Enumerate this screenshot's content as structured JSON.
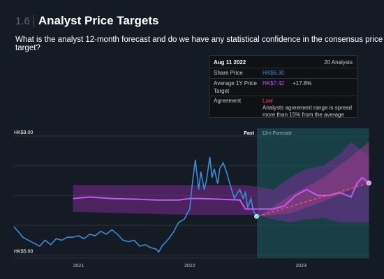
{
  "header": {
    "number": "1.6",
    "title": "Analyst Price Targets"
  },
  "question": "What is the analyst 12-month forecast and do we have any statistical confidence in the consensus price target?",
  "tooltip": {
    "date": "Aug 11 2022",
    "analysts": "20 Analysts",
    "share_price_label": "Share Price",
    "share_price_value": "HK$6.30",
    "avg_label_1": "Average 1Y Price",
    "avg_label_2": "Target",
    "avg_value": "HK$7.42",
    "avg_change": "+17.8%",
    "agreement_label": "Agreement",
    "agreement_value": "Low",
    "agreement_note_1": "Analysts agreement range is spread",
    "agreement_note_2": "more than 15% from the average"
  },
  "colors": {
    "share_price": "#3b8ed8",
    "avg_target": "#c25cf0",
    "range_band": "#8b2fa8",
    "forecast_bg": "#1d5c63",
    "trend": "#e85a4f",
    "low": "#ff4b4b",
    "share_text": "#3b8ed8",
    "avg_text": "#c25cf0"
  },
  "chart_data": {
    "type": "line",
    "labels": {
      "past": "Past",
      "forecast": "12m Forecast"
    },
    "y_ticks": [
      {
        "v": 9.0,
        "label": "HK$9.00"
      },
      {
        "v": 5.0,
        "label": "HK$5.00"
      }
    ],
    "x_ticks": [
      {
        "t": 2021.0,
        "label": "2021"
      },
      {
        "t": 2022.0,
        "label": "2022"
      },
      {
        "t": 2023.0,
        "label": "2023"
      }
    ],
    "x_range": [
      2020.42,
      2023.62
    ],
    "y_range": [
      4.9,
      9.35
    ],
    "now": 2022.61,
    "forecast_end": 2023.61,
    "series": [
      {
        "points": [
          [
            2020.42,
            5.95
          ],
          [
            2020.46,
            5.78
          ],
          [
            2020.5,
            5.6
          ],
          [
            2020.55,
            5.5
          ],
          [
            2020.6,
            5.4
          ],
          [
            2020.65,
            5.3
          ],
          [
            2020.7,
            5.5
          ],
          [
            2020.75,
            5.35
          ],
          [
            2020.8,
            5.55
          ],
          [
            2020.85,
            5.5
          ],
          [
            2020.9,
            5.6
          ],
          [
            2020.95,
            5.6
          ],
          [
            2021.0,
            5.65
          ],
          [
            2021.05,
            5.55
          ],
          [
            2021.1,
            5.7
          ],
          [
            2021.15,
            5.65
          ],
          [
            2021.2,
            5.8
          ],
          [
            2021.25,
            5.7
          ],
          [
            2021.3,
            5.85
          ],
          [
            2021.35,
            5.7
          ],
          [
            2021.4,
            5.5
          ],
          [
            2021.45,
            5.45
          ],
          [
            2021.5,
            5.5
          ],
          [
            2021.55,
            5.3
          ],
          [
            2021.6,
            5.35
          ],
          [
            2021.65,
            5.25
          ],
          [
            2021.7,
            5.2
          ],
          [
            2021.72,
            5.1
          ],
          [
            2021.75,
            5.3
          ],
          [
            2021.8,
            5.5
          ],
          [
            2021.85,
            5.75
          ],
          [
            2021.9,
            6.1
          ],
          [
            2021.95,
            6.2
          ],
          [
            2022.0,
            6.55
          ],
          [
            2022.02,
            7.3
          ],
          [
            2022.05,
            8.2
          ],
          [
            2022.08,
            7.2
          ],
          [
            2022.1,
            7.8
          ],
          [
            2022.13,
            7.2
          ],
          [
            2022.15,
            7.5
          ],
          [
            2022.18,
            8.3
          ],
          [
            2022.2,
            7.6
          ],
          [
            2022.22,
            7.9
          ],
          [
            2022.25,
            7.4
          ],
          [
            2022.27,
            7.9
          ],
          [
            2022.3,
            8.1
          ],
          [
            2022.33,
            7.8
          ],
          [
            2022.36,
            7.4
          ],
          [
            2022.4,
            6.9
          ],
          [
            2022.43,
            7.1
          ],
          [
            2022.45,
            7.2
          ],
          [
            2022.48,
            6.9
          ],
          [
            2022.5,
            7.1
          ],
          [
            2022.52,
            6.6
          ],
          [
            2022.55,
            6.9
          ],
          [
            2022.57,
            6.5
          ],
          [
            2022.6,
            6.3
          ]
        ]
      },
      {
        "points": [
          [
            2020.95,
            6.9
          ],
          [
            2021.1,
            6.95
          ],
          [
            2021.3,
            6.9
          ],
          [
            2021.5,
            6.88
          ],
          [
            2021.7,
            6.85
          ],
          [
            2021.9,
            6.85
          ],
          [
            2022.0,
            6.9
          ],
          [
            2022.1,
            6.9
          ],
          [
            2022.3,
            6.87
          ],
          [
            2022.45,
            6.85
          ],
          [
            2022.5,
            6.55
          ],
          [
            2022.61,
            6.55
          ],
          [
            2022.75,
            6.55
          ],
          [
            2022.85,
            6.65
          ],
          [
            2022.95,
            7.0
          ],
          [
            2023.05,
            7.2
          ],
          [
            2023.15,
            7.0
          ],
          [
            2023.25,
            7.0
          ],
          [
            2023.35,
            7.1
          ],
          [
            2023.45,
            6.95
          ],
          [
            2023.5,
            7.4
          ],
          [
            2023.55,
            7.6
          ],
          [
            2023.61,
            7.42
          ]
        ]
      },
      {
        "points": [
          [
            2022.61,
            6.3
          ],
          [
            2023.61,
            7.42
          ]
        ]
      }
    ],
    "band_upper": [
      [
        2020.95,
        7.35
      ],
      [
        2022.0,
        7.35
      ],
      [
        2022.5,
        7.35
      ],
      [
        2022.61,
        7.3
      ],
      [
        2022.75,
        7.2
      ],
      [
        2022.9,
        7.6
      ],
      [
        2023.05,
        7.9
      ],
      [
        2023.2,
        8.0
      ],
      [
        2023.35,
        8.4
      ],
      [
        2023.45,
        8.8
      ],
      [
        2023.61,
        8.3
      ]
    ],
    "band_lower": [
      [
        2020.95,
        6.45
      ],
      [
        2022.0,
        6.35
      ],
      [
        2022.5,
        6.35
      ],
      [
        2022.61,
        6.35
      ],
      [
        2022.75,
        6.2
      ],
      [
        2022.9,
        6.1
      ],
      [
        2023.05,
        6.2
      ],
      [
        2023.2,
        6.25
      ],
      [
        2023.35,
        6.1
      ],
      [
        2023.45,
        6.1
      ],
      [
        2023.61,
        6.1
      ]
    ],
    "fan_upper": [
      [
        2022.61,
        6.3
      ],
      [
        2022.9,
        7.0
      ],
      [
        2023.2,
        7.6
      ],
      [
        2023.45,
        8.3
      ],
      [
        2023.61,
        8.8
      ]
    ],
    "fan_lower": [
      [
        2022.61,
        6.3
      ],
      [
        2022.9,
        6.4
      ],
      [
        2023.2,
        6.8
      ],
      [
        2023.45,
        7.2
      ],
      [
        2023.61,
        7.5
      ]
    ]
  }
}
